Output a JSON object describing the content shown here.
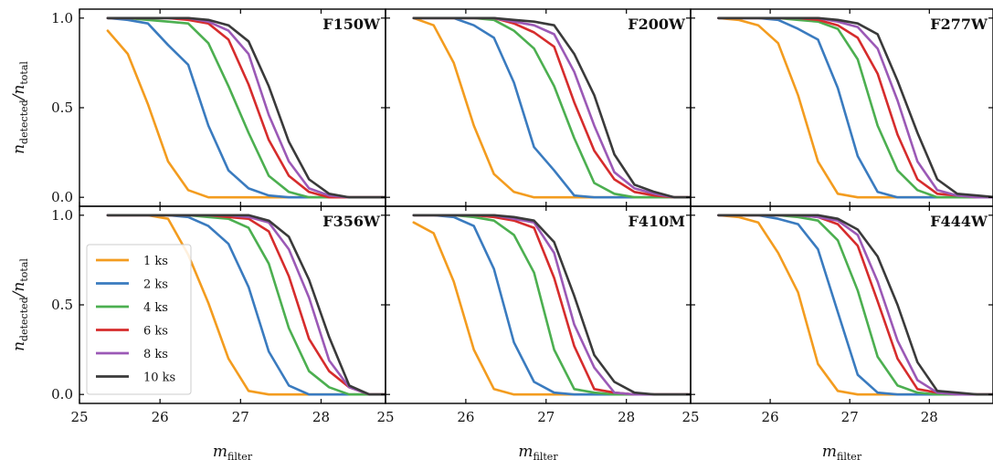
{
  "chart_data": {
    "type": "line",
    "xlabel_main": "m",
    "xlabel_sub": "filter",
    "ylabel_main": "n",
    "ylabel_sub_num": "detected",
    "ylabel_sub_den": "total",
    "xlim": [
      25.0,
      28.8
    ],
    "ylim": [
      -0.05,
      1.05
    ],
    "x_ticks": [
      25,
      26,
      27,
      28
    ],
    "x_tick_labels": [
      "25",
      "26",
      "27",
      "28"
    ],
    "y_ticks": [
      0.0,
      0.5,
      1.0
    ],
    "y_tick_labels": [
      "0.0",
      "0.5",
      "1.0"
    ],
    "x": [
      25.35,
      25.6,
      25.85,
      26.1,
      26.35,
      26.6,
      26.85,
      27.1,
      27.35,
      27.6,
      27.85,
      28.1,
      28.35,
      28.6,
      28.85
    ],
    "legend": {
      "position": "lower-left",
      "panel": 3,
      "entries": [
        "1 ks",
        "2 ks",
        "4 ks",
        "6 ks",
        "8 ks",
        "10 ks"
      ]
    },
    "colors": [
      "#f39c1f",
      "#3a7bbf",
      "#4caf50",
      "#d62c2c",
      "#9b59b6",
      "#3a3a3a"
    ],
    "panels": [
      {
        "title": "F150W",
        "series": [
          {
            "name": "1 ks",
            "values": [
              0.93,
              0.8,
              0.52,
              0.2,
              0.04,
              0.0,
              0.0,
              0.0,
              0.0,
              0.0,
              0.0,
              0.0,
              0.0,
              0.0,
              0.0
            ]
          },
          {
            "name": "2 ks",
            "values": [
              1.0,
              0.99,
              0.97,
              0.85,
              0.74,
              0.4,
              0.15,
              0.05,
              0.01,
              0.0,
              0.0,
              0.0,
              0.0,
              0.0,
              0.0
            ]
          },
          {
            "name": "4 ks",
            "values": [
              1.0,
              1.0,
              0.99,
              0.98,
              0.97,
              0.86,
              0.62,
              0.36,
              0.12,
              0.03,
              0.0,
              0.0,
              0.0,
              0.0,
              0.0
            ]
          },
          {
            "name": "6 ks",
            "values": [
              1.0,
              1.0,
              1.0,
              1.0,
              0.99,
              0.97,
              0.88,
              0.63,
              0.32,
              0.12,
              0.03,
              0.0,
              0.0,
              0.0,
              0.0
            ]
          },
          {
            "name": "8 ks",
            "values": [
              1.0,
              1.0,
              1.0,
              1.0,
              1.0,
              0.98,
              0.93,
              0.8,
              0.46,
              0.2,
              0.05,
              0.01,
              0.0,
              0.0,
              0.0
            ]
          },
          {
            "name": "10 ks",
            "values": [
              1.0,
              1.0,
              1.0,
              1.0,
              1.0,
              0.99,
              0.96,
              0.87,
              0.62,
              0.31,
              0.1,
              0.02,
              0.0,
              0.0,
              0.0
            ]
          }
        ]
      },
      {
        "title": "F200W",
        "series": [
          {
            "name": "1 ks",
            "values": [
              1.0,
              0.96,
              0.75,
              0.4,
              0.13,
              0.03,
              0.0,
              0.0,
              0.0,
              0.0,
              0.0,
              0.0,
              0.0,
              0.0,
              0.0
            ]
          },
          {
            "name": "2 ks",
            "values": [
              1.0,
              1.0,
              1.0,
              0.96,
              0.89,
              0.64,
              0.28,
              0.15,
              0.01,
              0.0,
              0.0,
              0.0,
              0.0,
              0.0,
              0.0
            ]
          },
          {
            "name": "4 ks",
            "values": [
              1.0,
              1.0,
              1.0,
              1.0,
              0.99,
              0.93,
              0.83,
              0.62,
              0.33,
              0.08,
              0.02,
              0.0,
              0.0,
              0.0,
              0.0
            ]
          },
          {
            "name": "6 ks",
            "values": [
              1.0,
              1.0,
              1.0,
              1.0,
              1.0,
              0.97,
              0.92,
              0.84,
              0.53,
              0.26,
              0.1,
              0.03,
              0.01,
              0.0,
              0.0
            ]
          },
          {
            "name": "8 ks",
            "values": [
              1.0,
              1.0,
              1.0,
              1.0,
              1.0,
              0.98,
              0.96,
              0.91,
              0.7,
              0.4,
              0.14,
              0.05,
              0.02,
              0.0,
              0.0
            ]
          },
          {
            "name": "10 ks",
            "values": [
              1.0,
              1.0,
              1.0,
              1.0,
              1.0,
              0.99,
              0.98,
              0.96,
              0.8,
              0.57,
              0.24,
              0.07,
              0.03,
              0.0,
              0.0
            ]
          }
        ]
      },
      {
        "title": "F277W",
        "series": [
          {
            "name": "1 ks",
            "values": [
              1.0,
              0.99,
              0.96,
              0.86,
              0.57,
              0.2,
              0.02,
              0.0,
              0.0,
              0.0,
              0.0,
              0.0,
              0.0,
              0.0,
              0.0
            ]
          },
          {
            "name": "2 ks",
            "values": [
              1.0,
              1.0,
              1.0,
              0.99,
              0.94,
              0.88,
              0.61,
              0.23,
              0.03,
              0.0,
              0.0,
              0.0,
              0.0,
              0.0,
              0.0
            ]
          },
          {
            "name": "4 ks",
            "values": [
              1.0,
              1.0,
              1.0,
              1.0,
              0.99,
              0.98,
              0.94,
              0.77,
              0.4,
              0.15,
              0.04,
              0.0,
              0.0,
              0.0,
              0.0
            ]
          },
          {
            "name": "6 ks",
            "values": [
              1.0,
              1.0,
              1.0,
              1.0,
              1.0,
              0.99,
              0.96,
              0.89,
              0.69,
              0.35,
              0.1,
              0.02,
              0.01,
              0.0,
              0.0
            ]
          },
          {
            "name": "8 ks",
            "values": [
              1.0,
              1.0,
              1.0,
              1.0,
              1.0,
              1.0,
              0.98,
              0.95,
              0.83,
              0.54,
              0.2,
              0.04,
              0.01,
              0.0,
              0.0
            ]
          },
          {
            "name": "10 ks",
            "values": [
              1.0,
              1.0,
              1.0,
              1.0,
              1.0,
              1.0,
              0.99,
              0.97,
              0.91,
              0.65,
              0.36,
              0.1,
              0.02,
              0.01,
              0.0
            ]
          }
        ]
      },
      {
        "title": "F356W",
        "series": [
          {
            "name": "1 ks",
            "values": [
              1.0,
              1.0,
              1.0,
              0.98,
              0.78,
              0.51,
              0.2,
              0.02,
              0.0,
              0.0,
              0.0,
              0.0,
              0.0,
              0.0,
              0.0
            ]
          },
          {
            "name": "2 ks",
            "values": [
              1.0,
              1.0,
              1.0,
              1.0,
              0.99,
              0.94,
              0.84,
              0.6,
              0.24,
              0.05,
              0.0,
              0.0,
              0.0,
              0.0,
              0.0
            ]
          },
          {
            "name": "4 ks",
            "values": [
              1.0,
              1.0,
              1.0,
              1.0,
              1.0,
              0.99,
              0.98,
              0.93,
              0.73,
              0.37,
              0.13,
              0.04,
              0.0,
              0.0,
              0.0
            ]
          },
          {
            "name": "6 ks",
            "values": [
              1.0,
              1.0,
              1.0,
              1.0,
              1.0,
              1.0,
              0.99,
              0.98,
              0.91,
              0.66,
              0.31,
              0.13,
              0.04,
              0.0,
              0.0
            ]
          },
          {
            "name": "8 ks",
            "values": [
              1.0,
              1.0,
              1.0,
              1.0,
              1.0,
              1.0,
              1.0,
              0.99,
              0.96,
              0.81,
              0.54,
              0.19,
              0.04,
              0.0,
              0.0
            ]
          },
          {
            "name": "10 ks",
            "values": [
              1.0,
              1.0,
              1.0,
              1.0,
              1.0,
              1.0,
              1.0,
              1.0,
              0.97,
              0.88,
              0.64,
              0.32,
              0.05,
              0.0,
              0.0
            ]
          }
        ]
      },
      {
        "title": "F410M",
        "series": [
          {
            "name": "1 ks",
            "values": [
              0.96,
              0.9,
              0.63,
              0.25,
              0.03,
              0.0,
              0.0,
              0.0,
              0.0,
              0.0,
              0.0,
              0.0,
              0.0,
              0.0,
              0.0
            ]
          },
          {
            "name": "2 ks",
            "values": [
              1.0,
              1.0,
              0.99,
              0.94,
              0.7,
              0.29,
              0.07,
              0.01,
              0.0,
              0.0,
              0.0,
              0.0,
              0.0,
              0.0,
              0.0
            ]
          },
          {
            "name": "4 ks",
            "values": [
              1.0,
              1.0,
              1.0,
              0.99,
              0.97,
              0.89,
              0.68,
              0.25,
              0.03,
              0.01,
              0.0,
              0.0,
              0.0,
              0.0,
              0.0
            ]
          },
          {
            "name": "6 ks",
            "values": [
              1.0,
              1.0,
              1.0,
              1.0,
              0.99,
              0.97,
              0.93,
              0.65,
              0.27,
              0.03,
              0.01,
              0.0,
              0.0,
              0.0,
              0.0
            ]
          },
          {
            "name": "8 ks",
            "values": [
              1.0,
              1.0,
              1.0,
              1.0,
              1.0,
              0.98,
              0.96,
              0.79,
              0.39,
              0.15,
              0.01,
              0.0,
              0.0,
              0.0,
              0.0
            ]
          },
          {
            "name": "10 ks",
            "values": [
              1.0,
              1.0,
              1.0,
              1.0,
              1.0,
              0.99,
              0.97,
              0.85,
              0.55,
              0.22,
              0.07,
              0.01,
              0.0,
              0.0,
              0.0
            ]
          }
        ]
      },
      {
        "title": "F444W",
        "series": [
          {
            "name": "1 ks",
            "values": [
              1.0,
              0.99,
              0.96,
              0.79,
              0.57,
              0.17,
              0.02,
              0.0,
              0.0,
              0.0,
              0.0,
              0.0,
              0.0,
              0.0,
              0.0
            ]
          },
          {
            "name": "2 ks",
            "values": [
              1.0,
              1.0,
              1.0,
              0.98,
              0.95,
              0.81,
              0.46,
              0.11,
              0.01,
              0.0,
              0.0,
              0.0,
              0.0,
              0.0,
              0.0
            ]
          },
          {
            "name": "4 ks",
            "values": [
              1.0,
              1.0,
              1.0,
              1.0,
              0.99,
              0.97,
              0.86,
              0.58,
              0.21,
              0.05,
              0.01,
              0.0,
              0.0,
              0.0,
              0.0
            ]
          },
          {
            "name": "6 ks",
            "values": [
              1.0,
              1.0,
              1.0,
              1.0,
              1.0,
              0.99,
              0.95,
              0.83,
              0.52,
              0.2,
              0.03,
              0.01,
              0.0,
              0.0,
              0.0
            ]
          },
          {
            "name": "8 ks",
            "values": [
              1.0,
              1.0,
              1.0,
              1.0,
              1.0,
              0.99,
              0.97,
              0.89,
              0.63,
              0.3,
              0.08,
              0.01,
              0.0,
              0.0,
              0.0
            ]
          },
          {
            "name": "10 ks",
            "values": [
              1.0,
              1.0,
              1.0,
              1.0,
              1.0,
              1.0,
              0.98,
              0.92,
              0.77,
              0.5,
              0.18,
              0.02,
              0.01,
              0.0,
              0.0
            ]
          }
        ]
      }
    ]
  }
}
